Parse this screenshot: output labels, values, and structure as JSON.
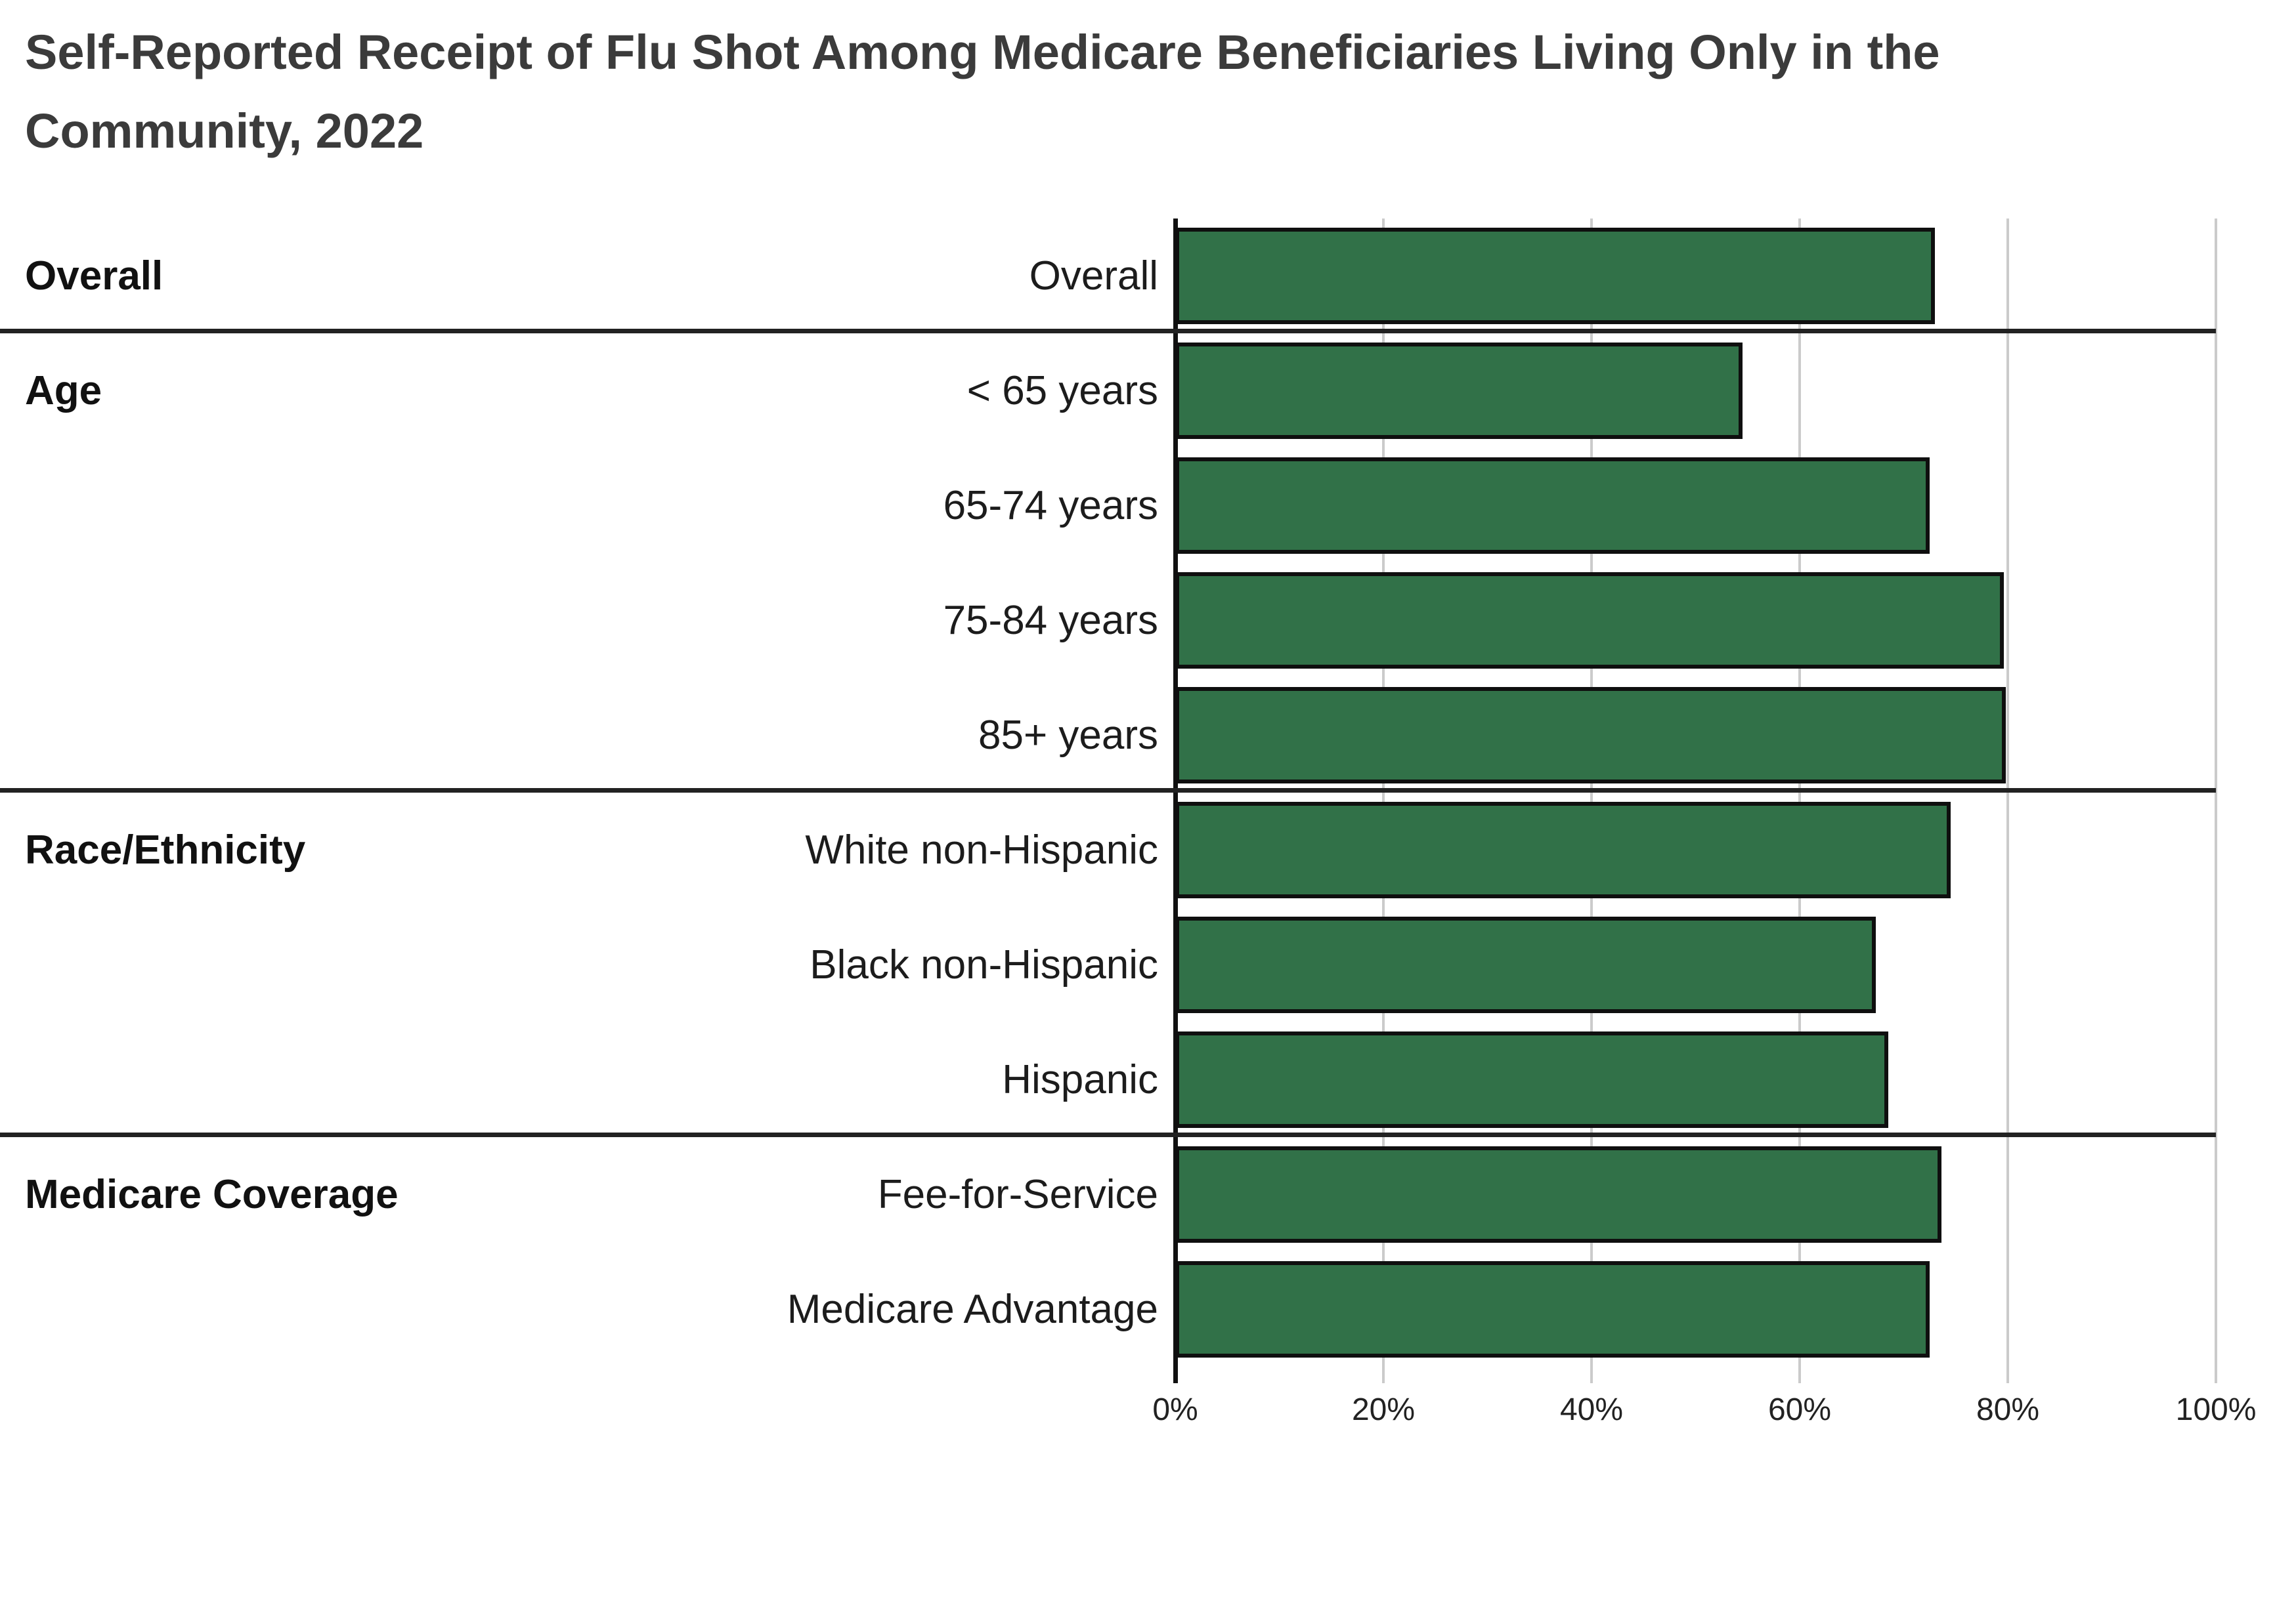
{
  "title": {
    "line1": "Self-Reported Receipt of Flu Shot Among Medicare Beneficiaries Living Only in the",
    "line2": "Community, 2022"
  },
  "colors": {
    "bar_fill": "#317148",
    "bar_border": "#0f0f0f",
    "separator": "#222222",
    "gridline": "#cbcbcb",
    "axis": "#111111",
    "title_text": "#3b3b3b",
    "label_text": "#1c1c1c",
    "tick_text": "#222222"
  },
  "chart_data": {
    "type": "bar",
    "orientation": "horizontal",
    "title": "Self-Reported Receipt of Flu Shot Among Medicare Beneficiaries Living Only in the Community, 2022",
    "xlabel": "",
    "ylabel": "",
    "xlim": [
      0,
      100
    ],
    "x_ticks": [
      "0%",
      "20%",
      "40%",
      "60%",
      "80%",
      "100%"
    ],
    "grid": true,
    "legend": "none",
    "unit": "percent",
    "groups": [
      {
        "label": "Overall",
        "rows": [
          {
            "label": "Overall",
            "value": 73.0
          }
        ]
      },
      {
        "label": "Age",
        "rows": [
          {
            "label": "< 65 years",
            "value": 54.5
          },
          {
            "label": "65-74 years",
            "value": 72.5
          },
          {
            "label": "75-84 years",
            "value": 79.6
          },
          {
            "label": "85+ years",
            "value": 79.8
          }
        ]
      },
      {
        "label": "Race/Ethnicity",
        "rows": [
          {
            "label": "White non-Hispanic",
            "value": 74.5
          },
          {
            "label": "Black non-Hispanic",
            "value": 67.3
          },
          {
            "label": "Hispanic",
            "value": 68.5
          }
        ]
      },
      {
        "label": "Medicare Coverage",
        "rows": [
          {
            "label": "Fee-for-Service",
            "value": 73.6
          },
          {
            "label": "Medicare Advantage",
            "value": 72.5
          }
        ]
      }
    ]
  }
}
